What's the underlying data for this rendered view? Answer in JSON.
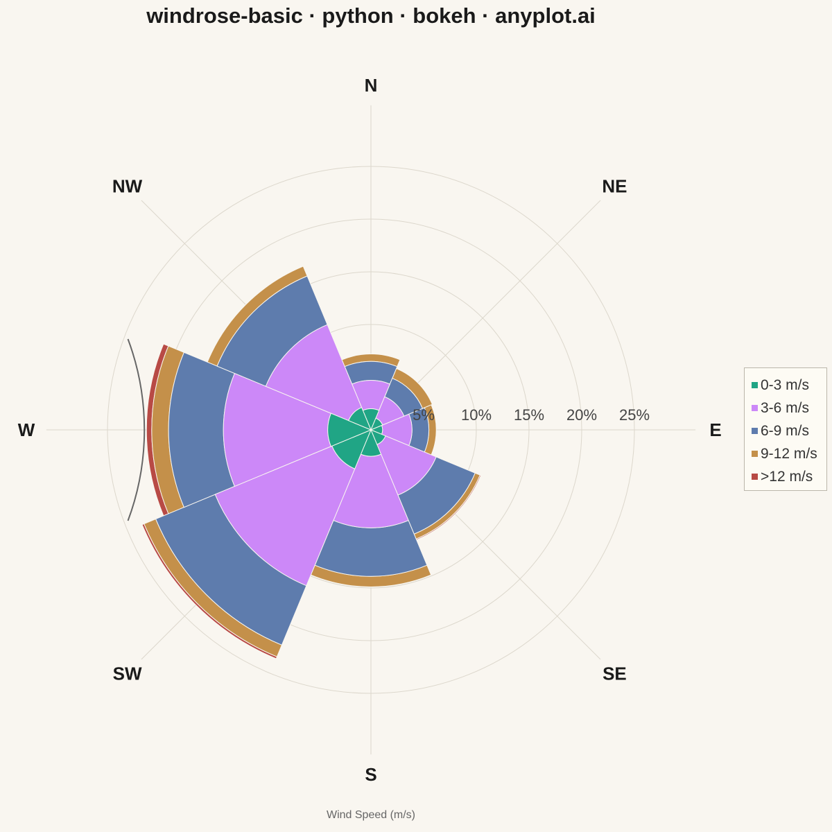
{
  "chart_data": {
    "type": "windrose",
    "title": "windrose-basic · python · bokeh · anyplot.ai",
    "xlabel": "Wind Speed (m/s)",
    "directions": [
      "N",
      "NE",
      "E",
      "SE",
      "S",
      "SW",
      "W",
      "NW"
    ],
    "ring_values": [
      5,
      10,
      15,
      20,
      25
    ],
    "ring_labels": [
      "5%",
      "10%",
      "15%",
      "20%",
      "25%"
    ],
    "rmax": 28,
    "grid": true,
    "legend_position": "right",
    "series": [
      {
        "name": "0-3 m/s",
        "color": "#20a585",
        "values": [
          2.0,
          1.2,
          1.1,
          1.5,
          2.5,
          4.0,
          4.1,
          2.3
        ]
      },
      {
        "name": "3-6 m/s",
        "color": "#cc88f8",
        "values": [
          4.7,
          3.4,
          3.9,
          6.7,
          9.3,
          16.0,
          14.0,
          10.8
        ]
      },
      {
        "name": "6-9 m/s",
        "color": "#5e7cad",
        "values": [
          6.5,
          5.3,
          5.5,
          10.7,
          13.9,
          22.1,
          19.2,
          15.8
        ]
      },
      {
        "name": "9-12 m/s",
        "color": "#c4904a",
        "values": [
          7.2,
          6.3,
          6.2,
          11.2,
          14.9,
          23.3,
          20.8,
          16.8
        ]
      },
      {
        "name": ">12 m/s",
        "color": "#b84a45",
        "values": [
          7.2,
          6.3,
          6.2,
          11.3,
          14.9,
          23.5,
          21.3,
          16.8
        ]
      }
    ],
    "range_marker": {
      "direction": "W",
      "value": 23.3
    }
  }
}
